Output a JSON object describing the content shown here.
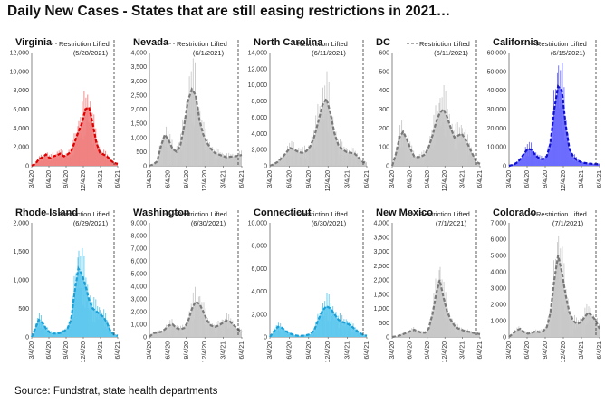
{
  "page": {
    "title": "Daily New Cases -  States that are still easing restrictions in 2021…",
    "source": "Source: Fundstrat, state health departments"
  },
  "colors": {
    "gray": "#c8c8c8",
    "gray_line": "#7a7a7a",
    "red": "#f08080",
    "red_line": "#e00000",
    "blue": "#6a6aff",
    "blue_line": "#1010d0",
    "cyan": "#5fc8ee",
    "cyan_line": "#1a9fd6"
  },
  "chart_data": [
    {
      "type": "area",
      "title": "Virginia",
      "legend": "Restriction Lifted",
      "restriction_date": "(5/28/2021)",
      "color": "red",
      "ylim": [
        0,
        12000
      ],
      "yticks": [
        "0",
        "2,000",
        "4,000",
        "6,000",
        "8,000",
        "10,000",
        "12,000"
      ],
      "xticks": [
        "3/4/20",
        "6/4/20",
        "9/4/20",
        "12/4/20",
        "3/4/21",
        "6/4/21"
      ],
      "series": [
        {
          "values": [
            0,
            200,
            700,
            900,
            1200,
            800,
            1000,
            1100,
            1300,
            1000,
            1200,
            1500,
            2500,
            3600,
            4500,
            6000,
            6200,
            4500,
            2500,
            1400,
            1200,
            1000,
            600,
            300,
            200
          ]
        }
      ]
    },
    {
      "type": "area",
      "title": "Nevada",
      "legend": "Restriction Lifted",
      "restriction_date": "(6/1/2021)",
      "color": "gray",
      "ylim": [
        0,
        4000
      ],
      "yticks": [
        "0",
        "500",
        "1,000",
        "1,500",
        "2,000",
        "2,500",
        "3,000",
        "3,500",
        "4,000"
      ],
      "xticks": [
        "3/4/20",
        "6/4/20",
        "9/4/20",
        "12/4/20",
        "3/4/21",
        "6/4/21"
      ],
      "series": [
        {
          "values": [
            0,
            50,
            150,
            700,
            1100,
            900,
            600,
            500,
            700,
            1400,
            2300,
            2700,
            2500,
            1600,
            1100,
            800,
            600,
            450,
            400,
            350,
            300,
            320,
            330,
            350,
            380
          ]
        }
      ]
    },
    {
      "type": "area",
      "title": "North Carolina",
      "legend": "Restriction Lifted",
      "restriction_date": "(6/11/2021)",
      "color": "gray",
      "ylim": [
        0,
        14000
      ],
      "yticks": [
        "0",
        "2,000",
        "4,000",
        "6,000",
        "8,000",
        "10,000",
        "12,000",
        "14,000"
      ],
      "xticks": [
        "3/4/20",
        "6/4/20",
        "9/4/20",
        "12/4/20",
        "3/4/21",
        "6/4/21"
      ],
      "series": [
        {
          "values": [
            0,
            200,
            500,
            1000,
            1600,
            2200,
            2000,
            1700,
            1600,
            1800,
            2400,
            3600,
            5500,
            7500,
            8300,
            6500,
            4000,
            2500,
            2000,
            1700,
            1600,
            1500,
            1000,
            500,
            300
          ]
        }
      ]
    },
    {
      "type": "area",
      "title": "DC",
      "legend": "Restriction Lifted",
      "restriction_date": "(6/11/2021)",
      "color": "gray",
      "ylim": [
        0,
        600
      ],
      "yticks": [
        "0",
        "100",
        "200",
        "300",
        "400",
        "500",
        "600"
      ],
      "xticks": [
        "3/4/20",
        "6/4/20",
        "9/4/20",
        "12/4/20",
        "3/4/21",
        "6/4/21"
      ],
      "series": [
        {
          "values": [
            0,
            60,
            150,
            180,
            140,
            90,
            50,
            45,
            50,
            60,
            100,
            160,
            230,
            280,
            300,
            260,
            200,
            150,
            160,
            170,
            140,
            100,
            60,
            20,
            10
          ]
        }
      ]
    },
    {
      "type": "area",
      "title": "California",
      "legend": "Restriction Lifted",
      "restriction_date": "(6/15/2021)",
      "color": "blue",
      "ylim": [
        0,
        60000
      ],
      "yticks": [
        "0",
        "10,000",
        "20,000",
        "30,000",
        "40,000",
        "50,000",
        "60,000"
      ],
      "xticks": [
        "3/4/20",
        "6/4/20",
        "9/4/20",
        "12/4/20",
        "3/4/21",
        "6/4/21"
      ],
      "series": [
        {
          "values": [
            0,
            500,
            1500,
            3500,
            6500,
            9000,
            8500,
            5500,
            4000,
            3500,
            5000,
            12000,
            30000,
            42000,
            40000,
            22000,
            9000,
            5000,
            3000,
            2000,
            1500,
            1200,
            1000,
            900,
            800
          ]
        }
      ]
    },
    {
      "type": "area",
      "title": "Rhode Island",
      "legend": "Restriction Lifted",
      "restriction_date": "(6/29/2021)",
      "color": "cyan",
      "ylim": [
        0,
        2000
      ],
      "yticks": [
        "0",
        "500",
        "1,000",
        "1,500",
        "2,000"
      ],
      "xticks": [
        "3/4/20",
        "6/4/20",
        "9/4/20",
        "12/4/20",
        "3/4/21",
        "6/4/21"
      ],
      "series": [
        {
          "values": [
            0,
            150,
            300,
            250,
            150,
            80,
            60,
            60,
            70,
            100,
            150,
            300,
            800,
            1200,
            1100,
            900,
            650,
            500,
            450,
            400,
            350,
            250,
            100,
            40,
            20
          ]
        }
      ]
    },
    {
      "type": "area",
      "title": "Washington",
      "legend": "Restriction Lifted",
      "restriction_date": "(6/30/2021)",
      "color": "gray",
      "ylim": [
        0,
        9000
      ],
      "yticks": [
        "0",
        "1,000",
        "2,000",
        "3,000",
        "4,000",
        "5,000",
        "6,000",
        "7,000",
        "8,000",
        "9,000"
      ],
      "xticks": [
        "3/4/20",
        "6/4/20",
        "9/4/20",
        "12/4/20",
        "3/4/21",
        "6/4/21"
      ],
      "series": [
        {
          "values": [
            0,
            300,
            350,
            400,
            600,
            900,
            1000,
            700,
            600,
            700,
            1200,
            2200,
            2800,
            2600,
            2000,
            1300,
            900,
            800,
            900,
            1100,
            1300,
            1200,
            900,
            600,
            400
          ]
        }
      ]
    },
    {
      "type": "area",
      "title": "Connecticut",
      "legend": "Restriction Lifted",
      "restriction_date": "(6/30/2021)",
      "color": "cyan",
      "ylim": [
        0,
        10000
      ],
      "yticks": [
        "0",
        "2,000",
        "4,000",
        "6,000",
        "8,000",
        "10,000"
      ],
      "xticks": [
        "3/4/20",
        "6/4/20",
        "9/4/20",
        "12/4/20",
        "3/4/21",
        "6/4/21"
      ],
      "series": [
        {
          "values": [
            0,
            500,
            900,
            800,
            500,
            300,
            150,
            100,
            100,
            150,
            250,
            600,
            1500,
            2300,
            2700,
            2500,
            2000,
            1500,
            1300,
            1200,
            1000,
            700,
            400,
            200,
            100
          ]
        }
      ]
    },
    {
      "type": "area",
      "title": "New Mexico",
      "legend": "Restriction Lifted",
      "restriction_date": "(7/1/2021)",
      "color": "gray",
      "ylim": [
        0,
        4000
      ],
      "yticks": [
        "0",
        "500",
        "1,000",
        "1,500",
        "2,000",
        "2,500",
        "3,000",
        "3,500",
        "4,000"
      ],
      "xticks": [
        "3/4/20",
        "6/4/20",
        "9/4/20",
        "12/4/20",
        "3/4/21",
        "6/4/21"
      ],
      "series": [
        {
          "values": [
            0,
            20,
            50,
            100,
            150,
            200,
            250,
            200,
            150,
            150,
            300,
            800,
            1500,
            2000,
            1400,
            900,
            600,
            400,
            300,
            250,
            200,
            180,
            150,
            120,
            100
          ]
        }
      ]
    },
    {
      "type": "area",
      "title": "Colorado",
      "legend": "Restriction Lifted",
      "restriction_date": "(7/1/2021)",
      "color": "gray",
      "ylim": [
        0,
        7000
      ],
      "yticks": [
        "0",
        "1,000",
        "2,000",
        "3,000",
        "4,000",
        "5,000",
        "6,000",
        "7,000"
      ],
      "xticks": [
        "3/4/20",
        "6/4/20",
        "9/4/20",
        "12/4/20",
        "3/4/21",
        "6/4/21"
      ],
      "series": [
        {
          "values": [
            0,
            200,
            400,
            500,
            300,
            200,
            250,
            350,
            300,
            350,
            600,
            1500,
            3500,
            5000,
            4000,
            2600,
            1500,
            1000,
            800,
            900,
            1200,
            1500,
            1300,
            1000,
            500
          ]
        }
      ]
    }
  ]
}
